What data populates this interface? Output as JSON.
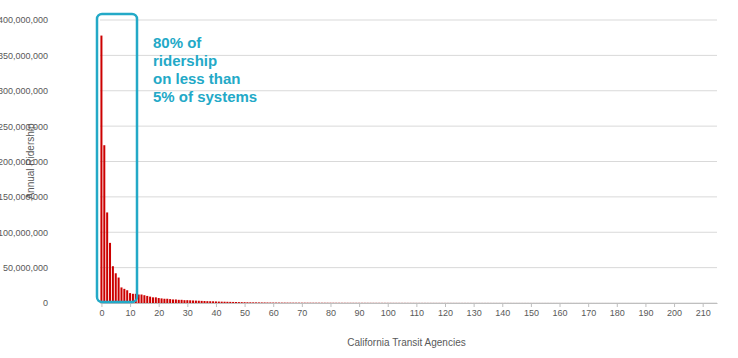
{
  "chart_data": {
    "type": "bar",
    "y_label": "Annual Ridership",
    "x_label": "California Transit Agencies",
    "annotation": [
      "80% of",
      "ridership",
      "on less than",
      "5% of systems"
    ],
    "color": "#cc0000",
    "grid": true,
    "x": [
      0,
      1,
      2,
      3,
      4,
      5,
      6,
      7,
      8,
      9,
      10,
      11,
      12,
      13,
      14,
      15,
      16,
      17,
      18,
      19,
      20,
      21,
      22,
      23,
      24,
      25,
      26,
      27,
      28,
      29,
      30,
      31,
      32,
      33,
      34,
      35,
      36,
      37,
      38,
      39,
      40,
      41,
      42,
      43,
      44,
      45,
      46,
      47,
      48,
      49,
      50,
      51,
      52,
      53,
      54,
      55,
      56,
      57,
      58,
      59,
      60,
      61,
      62,
      63,
      64,
      65,
      66,
      67,
      68,
      69,
      70,
      71,
      72,
      73,
      74,
      75,
      76,
      77,
      78,
      79,
      80,
      81,
      82,
      83,
      84,
      85,
      86,
      87,
      88,
      89,
      90,
      91,
      92,
      93,
      94,
      95,
      96,
      97,
      98,
      99,
      100,
      101,
      102,
      103,
      104,
      105,
      106,
      107,
      108,
      109,
      110,
      111,
      112,
      113,
      114,
      115,
      116,
      117,
      118,
      119,
      120,
      121,
      122,
      123,
      124,
      125,
      126,
      127,
      128,
      129,
      130,
      131,
      132,
      133,
      134,
      135,
      136,
      137,
      138,
      139,
      140,
      141,
      142,
      143,
      144,
      145,
      146,
      147,
      148,
      149,
      150,
      151,
      152,
      153,
      154,
      155,
      156,
      157,
      158,
      159,
      160,
      161,
      162,
      163,
      164,
      165,
      166,
      167,
      168,
      169,
      170,
      171,
      172,
      173,
      174,
      175,
      176,
      177,
      178,
      179,
      180,
      181,
      182,
      183,
      184,
      185,
      186,
      187,
      188,
      189,
      190,
      191,
      192,
      193,
      194,
      195,
      196,
      197,
      198,
      199,
      200,
      201,
      202,
      203,
      204,
      205,
      206,
      207,
      208,
      209,
      210,
      211,
      212,
      213,
      214
    ],
    "values": [
      378000000,
      223000000,
      128000000,
      85000000,
      52000000,
      42000000,
      36000000,
      22000000,
      20000000,
      18000000,
      14000000,
      13000000,
      13000000,
      12000000,
      12000000,
      11000000,
      10000000,
      9000000,
      8000000,
      8000000,
      7000000,
      6500000,
      6000000,
      6000000,
      5500000,
      5000000,
      5000000,
      4500000,
      4500000,
      4000000,
      4000000,
      3800000,
      3600000,
      3400000,
      3200000,
      3000000,
      2800000,
      2600000,
      2500000,
      2400000,
      2200000,
      2000000,
      1900000,
      1800000,
      1700000,
      1600000,
      1500000,
      1400000,
      1300000,
      1200000,
      1100000,
      1000000,
      950000,
      900000,
      850000,
      800000,
      750000,
      700000,
      650000,
      600000,
      580000,
      550000,
      530000,
      510000,
      490000,
      470000,
      450000,
      430000,
      410000,
      400000,
      390000,
      380000,
      370000,
      360000,
      350000,
      340000,
      330000,
      320000,
      310000,
      300000,
      290000,
      280000,
      270000,
      260000,
      250000,
      245000,
      240000,
      235000,
      230000,
      225000,
      220000,
      215000,
      210000,
      205000,
      200000,
      195000,
      190000,
      185000,
      180000,
      175000,
      170000,
      165000,
      160000,
      155000,
      150000,
      145000,
      140000,
      135000,
      130000,
      125000,
      120000,
      118000,
      116000,
      114000,
      112000,
      110000,
      108000,
      106000,
      104000,
      102000,
      100000,
      98000,
      96000,
      94000,
      92000,
      90000,
      88000,
      86000,
      84000,
      82000,
      80000,
      78000,
      76000,
      74000,
      72000,
      70000,
      68000,
      66000,
      64000,
      62000,
      60000,
      58000,
      56000,
      54000,
      52000,
      50000,
      49000,
      48000,
      47000,
      46000,
      45000,
      44000,
      43000,
      42000,
      41000,
      40000,
      39000,
      38000,
      37000,
      36000,
      35000,
      34000,
      33000,
      32000,
      31000,
      30000,
      29000,
      28000,
      27000,
      26000,
      25000,
      24000,
      23000,
      22000,
      21000,
      20000,
      19500,
      19000,
      18500,
      18000,
      17500,
      17000,
      16500,
      16000,
      15500,
      15000,
      14500,
      14000,
      13500,
      13000,
      12500,
      12000,
      11500,
      11000,
      10500,
      10000,
      9500,
      9000,
      8500,
      8000,
      7500,
      7000,
      6500,
      6000,
      5500,
      5000,
      4500,
      4000,
      3500,
      3000,
      2500,
      2000,
      1500,
      1000,
      500
    ],
    "xlim": [
      -0.5,
      215
    ],
    "xticks": [
      0,
      10,
      20,
      30,
      40,
      50,
      60,
      70,
      80,
      90,
      100,
      110,
      120,
      130,
      140,
      150,
      160,
      170,
      180,
      190,
      200,
      210
    ],
    "ylim": [
      0,
      400000000
    ],
    "yticks": [
      0,
      {
        "value": 50000000,
        "label": "50,000,000"
      },
      {
        "value": 100000000,
        "label": "100,000,000"
      },
      {
        "value": 150000000,
        "label": "150,000,000"
      },
      {
        "value": 200000000,
        "label": "200,000,000"
      },
      {
        "value": 250000000,
        "label": "250,000,000"
      },
      {
        "value": 300000000,
        "label": "300,000,000"
      },
      {
        "value": 350000000,
        "label": "350,000,000"
      },
      {
        "value": 400000000,
        "label": "400,000,000"
      }
    ]
  }
}
